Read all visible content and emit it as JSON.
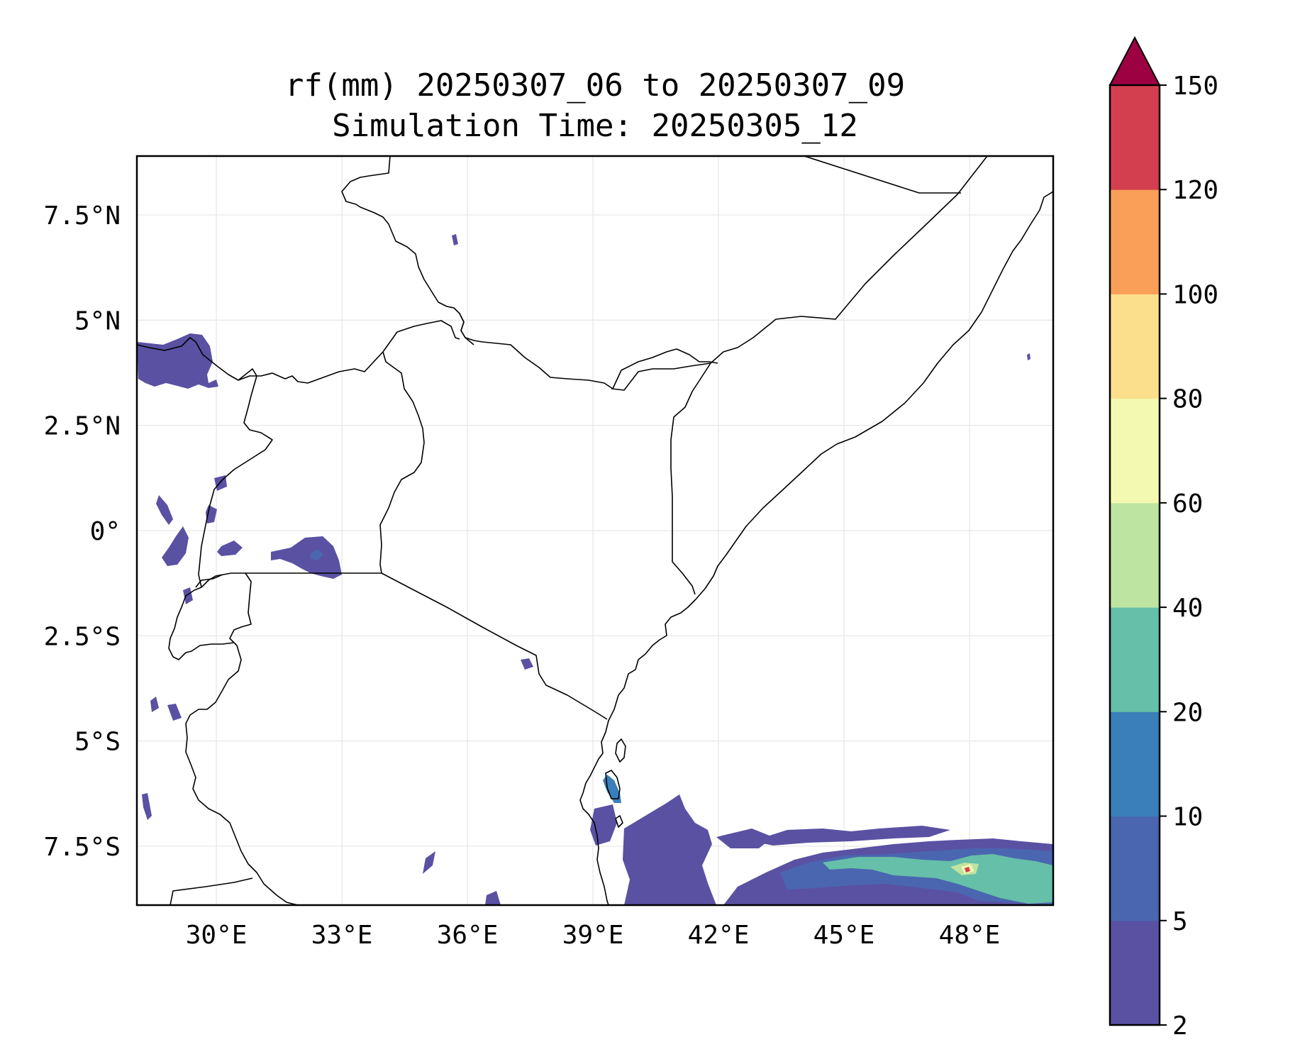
{
  "title": {
    "line1": "rf(mm) 20250307_06 to 20250307_09",
    "line2": "Simulation Time: 20250305_12"
  },
  "map": {
    "lon_range": [
      28.1,
      50.0
    ],
    "lat_range": [
      -8.9,
      8.9
    ],
    "lon_ticks": [
      {
        "value": 30,
        "label": "30°E"
      },
      {
        "value": 33,
        "label": "33°E"
      },
      {
        "value": 36,
        "label": "36°E"
      },
      {
        "value": 39,
        "label": "39°E"
      },
      {
        "value": 42,
        "label": "42°E"
      },
      {
        "value": 45,
        "label": "45°E"
      },
      {
        "value": 48,
        "label": "48°E"
      }
    ],
    "lat_ticks": [
      {
        "value": 7.5,
        "label": "7.5°N"
      },
      {
        "value": 5,
        "label": "5°N"
      },
      {
        "value": 2.5,
        "label": "2.5°N"
      },
      {
        "value": 0,
        "label": "0°"
      },
      {
        "value": -2.5,
        "label": "2.5°S"
      },
      {
        "value": -5,
        "label": "5°S"
      },
      {
        "value": -7.5,
        "label": "7.5°S"
      }
    ],
    "gridlines": true,
    "boundary_color": "#000000"
  },
  "colorbar": {
    "levels": [
      2,
      5,
      10,
      20,
      40,
      60,
      80,
      100,
      120,
      150
    ],
    "labels": [
      "2",
      "5",
      "10",
      "20",
      "40",
      "60",
      "80",
      "100",
      "120",
      "150"
    ],
    "colors": [
      "#5a51a3",
      "#4a66b0",
      "#3a7fba",
      "#66bfa8",
      "#bde4a1",
      "#f3f9b0",
      "#fbdf8d",
      "#f99f58",
      "#d43f4f"
    ],
    "extend_color": "#9e0142",
    "extend": "max"
  }
}
